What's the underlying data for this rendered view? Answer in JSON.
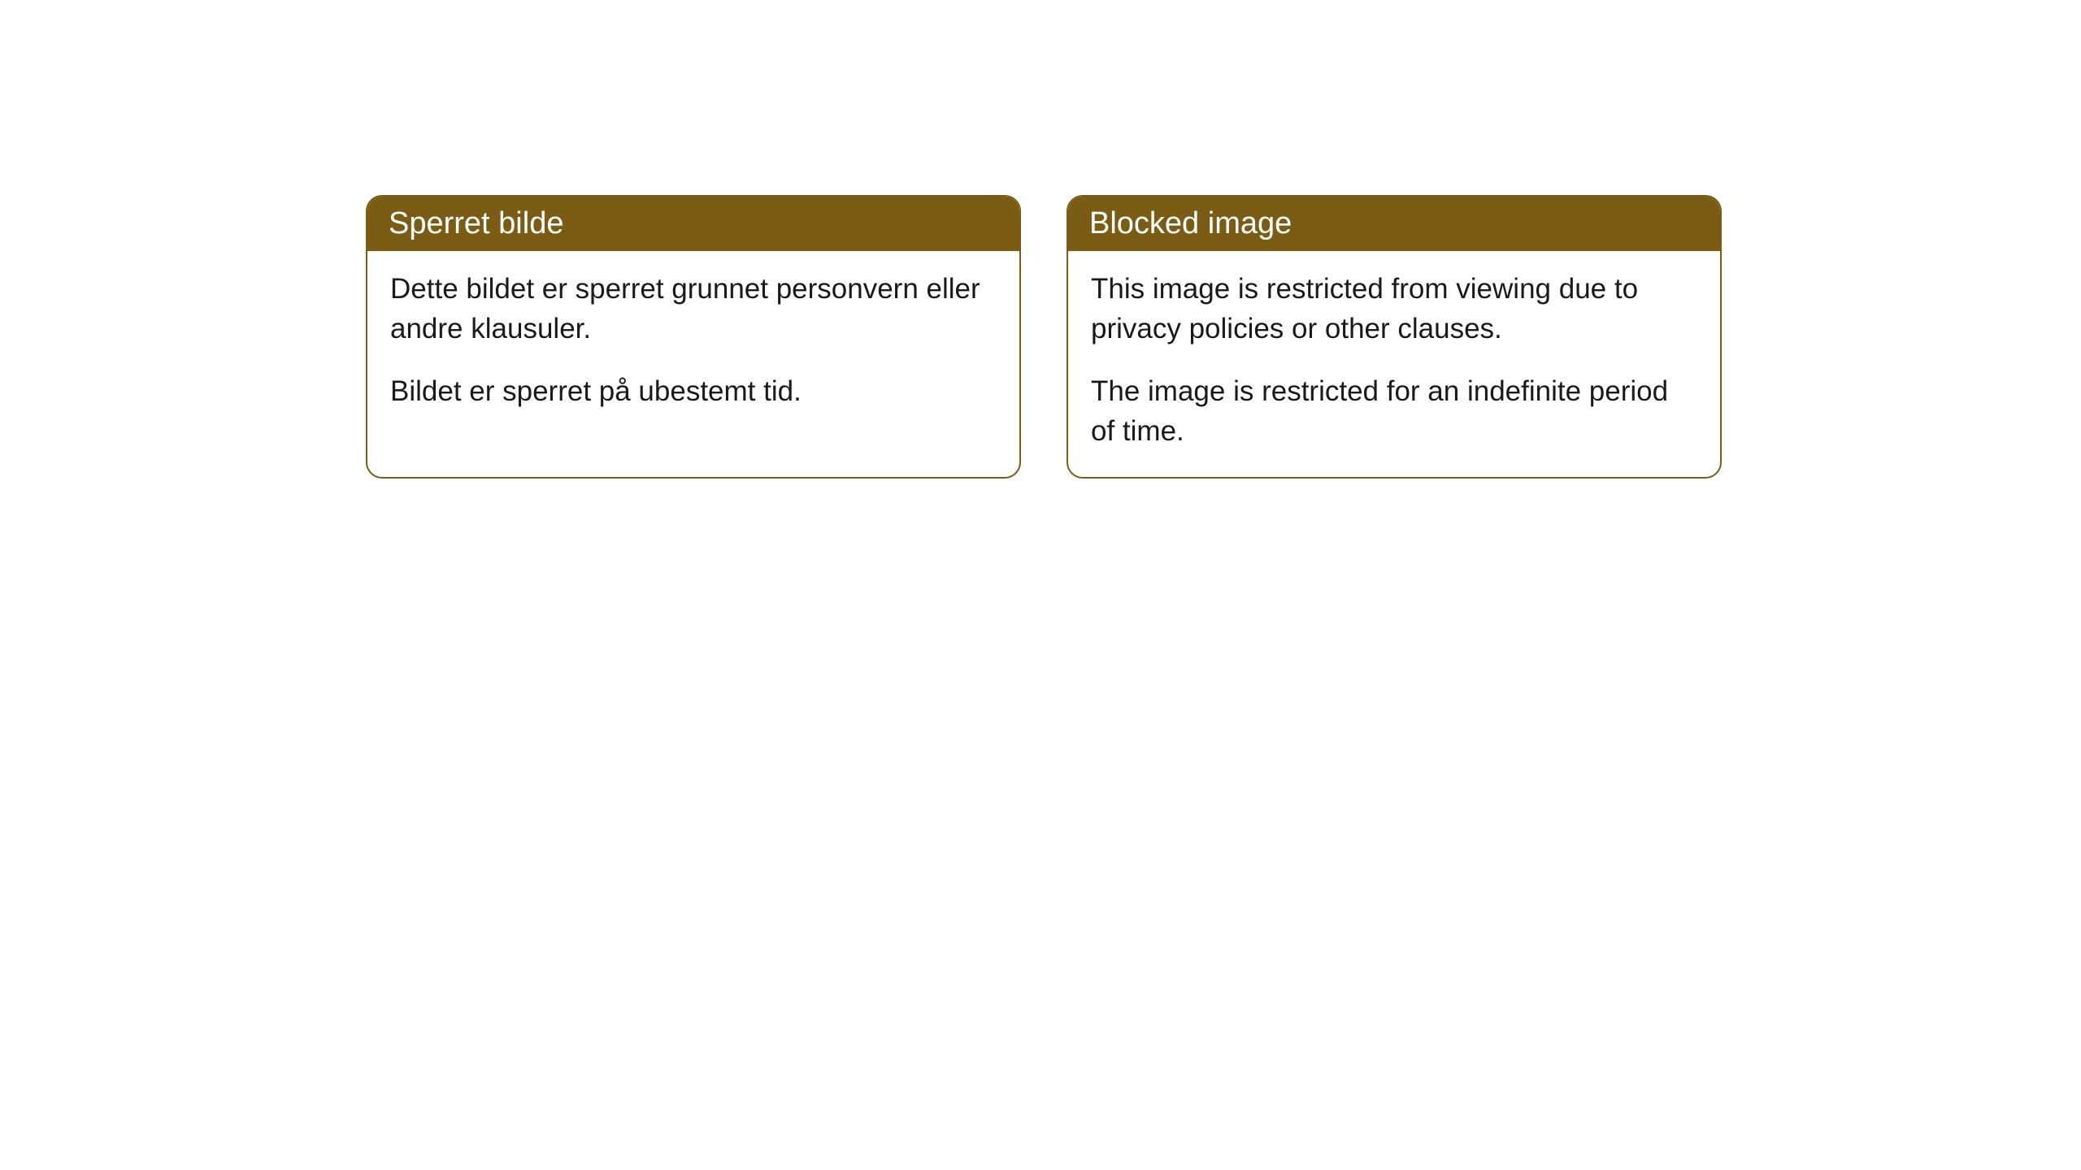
{
  "cards": [
    {
      "title": "Sperret bilde",
      "paragraph1": "Dette bildet er sperret grunnet personvern eller andre klausuler.",
      "paragraph2": "Bildet er sperret på ubestemt tid."
    },
    {
      "title": "Blocked image",
      "paragraph1": "This image is restricted from viewing due to privacy policies or other clauses.",
      "paragraph2": "The image is restricted for an indefinite period of time."
    }
  ],
  "colors": {
    "header_background": "#7a5c15",
    "header_text": "#ffffff",
    "body_background": "#ffffff",
    "body_text": "#1a1a1a",
    "border": "#7a5c15"
  }
}
